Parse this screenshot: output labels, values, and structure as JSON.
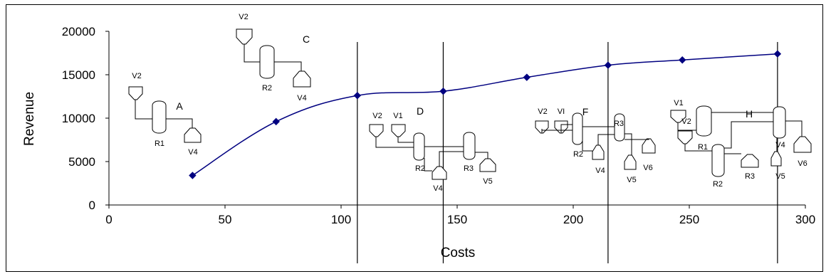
{
  "chart_data": {
    "type": "line",
    "title": "",
    "xlabel": "Costs",
    "ylabel": "Revenue",
    "xlim": [
      0,
      300
    ],
    "ylim": [
      0,
      20000
    ],
    "xticks": [
      "0",
      "50",
      "100",
      "150",
      "200",
      "250",
      "300"
    ],
    "yticks": [
      "0",
      "5000",
      "10000",
      "15000",
      "20000"
    ],
    "grid": false,
    "legend": "none",
    "series": [
      {
        "color": "#000080",
        "marker": "diamond",
        "x": [
          36,
          72,
          107,
          144,
          180,
          215,
          247,
          288
        ],
        "y": [
          3400,
          9600,
          12600,
          13100,
          14700,
          16100,
          16700,
          17400
        ]
      }
    ],
    "vertical_lines_x": [
      107,
      144,
      215,
      288
    ],
    "annotations": {
      "groups": [
        "A",
        "C",
        "D",
        "F",
        "H"
      ],
      "flowsheets": {
        "A": [
          "V2",
          "R1",
          "V4"
        ],
        "C": [
          "V2",
          "R2",
          "V4"
        ],
        "D": [
          "V2",
          "V1",
          "R2",
          "R3",
          "V4",
          "V5"
        ],
        "F": [
          "V2",
          "VI",
          "R2",
          "R3",
          "V4",
          "V5",
          "V6"
        ],
        "H": [
          "V1",
          "V2",
          "R1",
          "R2",
          "R3",
          "V4",
          "V5",
          "V6"
        ]
      }
    }
  }
}
